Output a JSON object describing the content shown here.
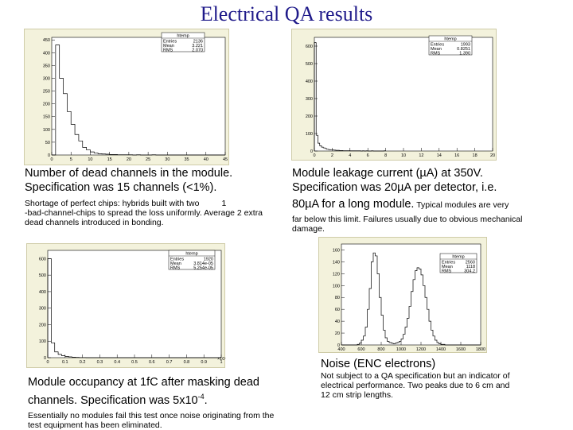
{
  "slide_title": "Electrical QA results",
  "chart_data": [
    {
      "type": "histogram",
      "stats": {
        "title": "htemp",
        "rows": [
          [
            "Entries",
            "2136"
          ],
          [
            "Mean",
            "3.221"
          ],
          [
            "RMS",
            "2.070"
          ]
        ]
      },
      "y_ticks": [
        "450",
        "400",
        "350",
        "300",
        "250",
        "200",
        "150",
        "100",
        "50",
        "0"
      ],
      "x_ticks": [
        "0",
        "5",
        "10",
        "15",
        "20",
        "25",
        "30",
        "35",
        "40",
        "45"
      ],
      "xlim": [
        0,
        45
      ],
      "ylim": [
        0,
        460
      ],
      "bin_width": 1,
      "values": [
        0,
        430,
        300,
        240,
        170,
        120,
        80,
        55,
        30,
        20,
        12,
        8,
        5,
        4,
        3,
        2,
        2,
        1,
        1,
        1,
        1,
        0,
        1,
        0,
        0,
        0,
        1,
        0,
        0,
        0,
        0,
        0,
        0,
        0,
        0,
        0,
        0,
        0,
        0,
        0,
        0,
        0,
        0,
        0,
        0
      ]
    },
    {
      "type": "histogram",
      "stats": {
        "title": "htemp",
        "rows": [
          [
            "Entries",
            "1993"
          ],
          [
            "Mean",
            "0.8251"
          ],
          [
            "RMS",
            "1.390"
          ]
        ]
      },
      "y_ticks": [
        "600",
        "500",
        "400",
        "300",
        "200",
        "100",
        "0"
      ],
      "x_ticks": [
        "0",
        "2",
        "4",
        "6",
        "8",
        "10",
        "12",
        "14",
        "16",
        "18",
        "20"
      ],
      "xlim": [
        0,
        20
      ],
      "ylim": [
        0,
        650
      ],
      "bin_width": 0.2,
      "values": [
        620,
        90,
        45,
        30,
        22,
        18,
        14,
        10,
        8,
        7,
        6,
        5,
        4,
        4,
        3,
        3,
        2,
        2,
        2,
        2,
        1,
        1,
        1,
        1,
        1,
        1,
        0,
        1,
        0,
        1,
        0,
        0,
        1,
        0,
        0,
        0,
        0,
        0,
        0,
        1
      ]
    },
    {
      "type": "histogram",
      "stats": {
        "title": "htemp",
        "rows": [
          [
            "Entries",
            "1920"
          ],
          [
            "Mean",
            "3.814e-05"
          ],
          [
            "RMS",
            "5.254e-05"
          ]
        ]
      },
      "y_ticks": [
        "600",
        "500",
        "400",
        "300",
        "200",
        "100",
        "0"
      ],
      "x_ticks": [
        "0",
        "0.1",
        "0.2",
        "0.3",
        "0.4",
        "0.5",
        "0.6",
        "0.7",
        "0.8",
        "0.9",
        "1"
      ],
      "x_multiplier": "×10⁻³",
      "xlim": [
        0,
        1
      ],
      "ylim": [
        0,
        650
      ],
      "bin_width": 0.02,
      "values": [
        600,
        90,
        35,
        20,
        12,
        8,
        5,
        3,
        2,
        1,
        1,
        0,
        0,
        0,
        0,
        0,
        0,
        0,
        0,
        0,
        0,
        0,
        0,
        0,
        0,
        0,
        0,
        0,
        0,
        0,
        0,
        0,
        0,
        0,
        0,
        0,
        0,
        0,
        0,
        0,
        0,
        0,
        0,
        0,
        0,
        0,
        0,
        0,
        0,
        0
      ]
    },
    {
      "type": "histogram",
      "stats": {
        "title": "htemp",
        "rows": [
          [
            "Entries",
            "2560"
          ],
          [
            "Mean",
            "1118"
          ],
          [
            "RMS",
            "304.2"
          ]
        ]
      },
      "y_ticks": [
        "160",
        "140",
        "120",
        "100",
        "80",
        "60",
        "40",
        "20",
        "0"
      ],
      "x_ticks": [
        "400",
        "600",
        "800",
        "1000",
        "1200",
        "1400",
        "1600",
        "1800"
      ],
      "xlim": [
        400,
        1800
      ],
      "ylim": [
        0,
        170
      ],
      "bin_width": 20,
      "values": [
        0,
        0,
        0,
        0,
        0,
        0,
        0,
        0,
        1,
        3,
        8,
        15,
        30,
        60,
        95,
        140,
        155,
        150,
        120,
        80,
        50,
        25,
        12,
        6,
        4,
        3,
        2,
        3,
        4,
        6,
        10,
        18,
        30,
        45,
        65,
        90,
        110,
        125,
        130,
        128,
        118,
        100,
        80,
        60,
        40,
        25,
        15,
        8,
        4,
        2,
        1,
        1,
        0,
        0,
        0,
        0,
        0,
        0,
        0,
        0,
        0,
        0,
        0,
        0,
        0,
        0,
        0,
        0,
        0,
        0
      ]
    }
  ],
  "captions": {
    "c1_main": "Number of dead channels in the module. Specification was 15 channels (<1%).",
    "c1_detail_a": "Shortage of perfect chips: hybrids built with two",
    "c1_detail_num": "1",
    "c1_detail_b": "-bad-channel-chips to spread the loss uniformly. Average 2 extra dead channels introduced in bonding.",
    "c2_line1": "Module leakage current (µA) at 350V.",
    "c2_line2": "Specification was 20µA per detector, i.e.",
    "c2_line3_big": "80µA for a long module.",
    "c2_line3_small": " Typical modules are very",
    "c2_detail": "far below this limit. Failures usually due to obvious mechanical damage.",
    "c3_main": "Module occupancy at 1fC after masking dead channels. Specification was 5x10",
    "c3_sup": "-4",
    "c3_end": ".",
    "c3_detail": "Essentially no modules fail this test once noise originating from the test equipment has been eliminated.",
    "c4_main": "Noise (ENC electrons)",
    "c4_detail": "Not subject to a QA specification but an indicator of electrical performance. Two peaks due to 6 cm and 12 cm strip lengths."
  }
}
